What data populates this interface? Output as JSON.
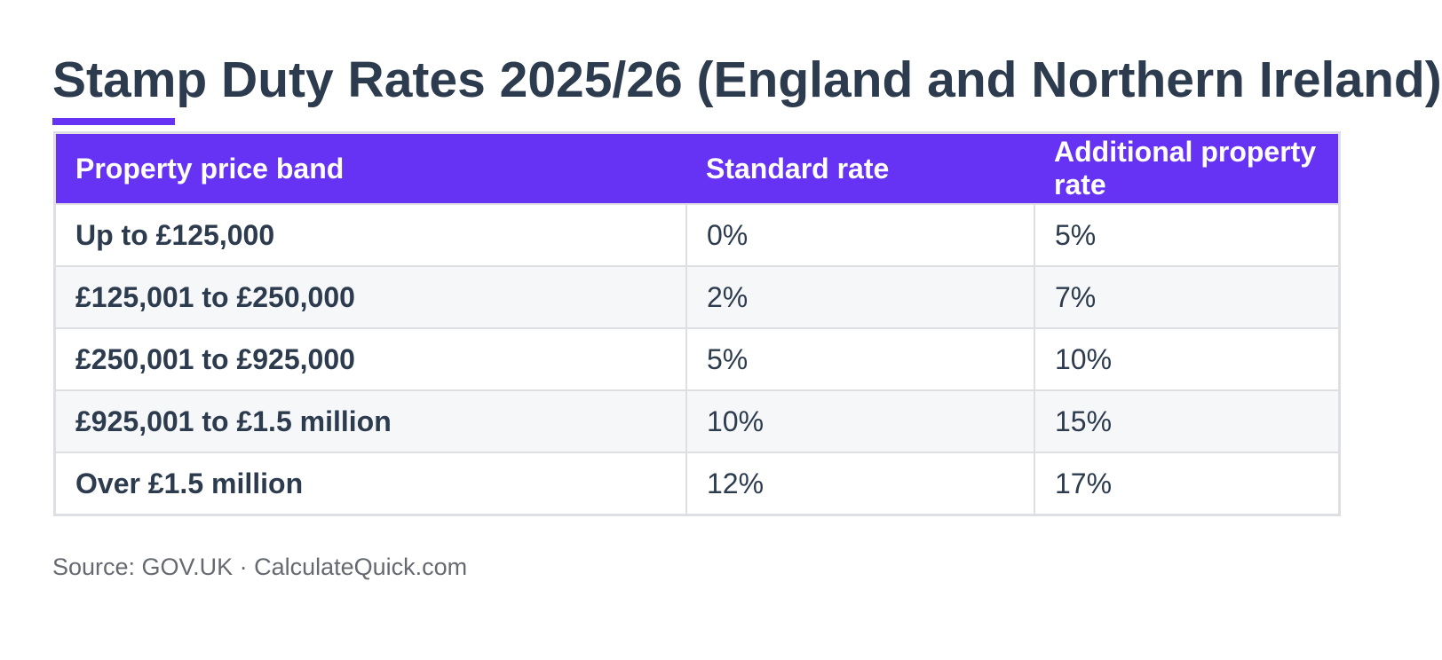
{
  "title": "Stamp Duty Rates 2025/26 (England and Northern Ireland)",
  "table": {
    "headers": [
      "Property price band",
      "Standard rate",
      "Additional property rate"
    ],
    "rows": [
      [
        "Up to £125,000",
        "0%",
        "5%"
      ],
      [
        "£125,001 to £250,000",
        "2%",
        "7%"
      ],
      [
        "£250,001 to £925,000",
        "5%",
        "10%"
      ],
      [
        "£925,001 to £1.5 million",
        "10%",
        "15%"
      ],
      [
        "Over £1.5 million",
        "12%",
        "17%"
      ]
    ]
  },
  "source": "Source: GOV.UK · CalculateQuick.com"
}
